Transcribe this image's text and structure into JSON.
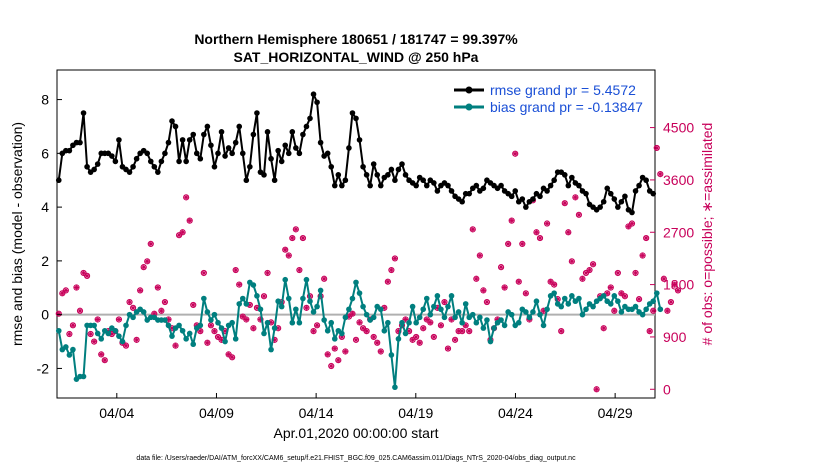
{
  "chart_data": {
    "type": "line",
    "title": "Northern Hemisphere 180651 / 181747 = 99.397%",
    "subtitle": "SAT_HORIZONTAL_WIND @ 250 hPa",
    "xlabel": "Apr.01,2020 00:00:00 start",
    "ylabel": "rmse and bias (model - observation)",
    "ylabel_right": "# of obs: o=possible; ∗=assimilated",
    "footer": "data file: /Users/raeder/DAI/ATM_forcXX/CAM6_setup/f.e21.FHIST_BGC.f09_025.CAM6assim.011/Diags_NTrS_2020-04/obs_diag_output.nc",
    "x_ticks": [
      {
        "day": 4,
        "label": "04/04"
      },
      {
        "day": 9,
        "label": "04/09"
      },
      {
        "day": 14,
        "label": "04/14"
      },
      {
        "day": 19,
        "label": "04/19"
      },
      {
        "day": 24,
        "label": "04/24"
      },
      {
        "day": 29,
        "label": "04/29"
      }
    ],
    "xlim": [
      1,
      31
    ],
    "ylim": [
      -3.1,
      9.1
    ],
    "y_ticks": [
      -2,
      0,
      2,
      4,
      6,
      8
    ],
    "ylim_right": [
      -150,
      5490
    ],
    "y_ticks_right": [
      0,
      900,
      1800,
      2700,
      3600,
      4500
    ],
    "zero_line": true,
    "legend_position": "top-right",
    "colors": {
      "rmse": "#000000",
      "bias": "#007f7f",
      "obs": "#c8005a",
      "zero": "#b0b0b0",
      "legend_text": "#1a4fd6"
    },
    "series": [
      {
        "name": "rmse grand pr = 5.4572",
        "color": "#000000",
        "values": [
          5.0,
          6.0,
          6.1,
          6.1,
          6.3,
          6.4,
          6.4,
          7.5,
          5.5,
          5.3,
          5.4,
          5.6,
          6.0,
          6.0,
          6.0,
          5.9,
          5.7,
          6.5,
          5.5,
          5.4,
          5.3,
          5.5,
          5.8,
          6.0,
          6.1,
          6.0,
          5.7,
          5.5,
          5.3,
          5.7,
          6.0,
          6.4,
          7.2,
          7.0,
          5.7,
          6.5,
          5.7,
          6.5,
          6.7,
          6.0,
          5.8,
          6.7,
          7.0,
          6.3,
          5.5,
          6.0,
          6.8,
          5.9,
          6.2,
          6.0,
          6.4,
          7.0,
          6.0,
          5.0,
          5.5,
          6.7,
          7.5,
          5.3,
          5.2,
          6.8,
          5.8,
          5.0,
          6.1,
          5.7,
          6.3,
          6.0,
          6.8,
          6.2,
          6.0,
          6.7,
          7.0,
          7.3,
          8.2,
          7.9,
          6.4,
          5.9,
          6.0,
          5.5,
          4.8,
          5.2,
          4.8,
          5.0,
          6.2,
          7.5,
          7.3,
          6.5,
          5.5,
          5.2,
          4.8,
          5.6,
          5.2,
          4.8,
          5.1,
          5.2,
          5.4,
          5.0,
          5.4,
          5.6,
          5.2,
          5.0,
          4.9,
          4.8,
          5.1,
          5.0,
          4.8,
          5.0,
          4.9,
          4.6,
          4.8,
          4.9,
          4.8,
          4.6,
          4.4,
          4.3,
          4.2,
          4.5,
          4.5,
          4.7,
          4.8,
          4.6,
          4.7,
          5.0,
          4.9,
          4.8,
          4.7,
          4.8,
          4.6,
          4.5,
          4.4,
          4.6,
          4.2,
          4.3,
          4.0,
          4.2,
          4.3,
          4.5,
          4.4,
          4.7,
          4.6,
          4.8,
          5.0,
          5.3,
          5.3,
          5.2,
          4.8,
          5.1,
          4.9,
          4.8,
          4.6,
          4.5,
          4.1,
          4.0,
          3.9,
          4.0,
          4.2,
          4.7,
          4.5,
          4.3,
          4.0,
          4.2,
          4.4,
          3.9,
          3.8,
          4.6,
          4.8,
          5.1,
          5.0,
          4.6,
          4.5
        ]
      },
      {
        "name": "bias grand pr = -0.13847",
        "color": "#007f7f",
        "values": [
          -0.6,
          -1.3,
          -1.2,
          -1.5,
          -1.3,
          -2.4,
          -2.3,
          -2.3,
          -0.4,
          -0.4,
          -0.4,
          -0.7,
          -0.9,
          -0.6,
          -0.7,
          -0.5,
          -0.6,
          -0.8,
          -1.0,
          -0.4,
          0.0,
          -0.1,
          0.1,
          0.2,
          0.1,
          -0.2,
          -0.1,
          -0.1,
          -0.2,
          -0.2,
          -0.2,
          -0.4,
          -0.8,
          -0.5,
          -0.4,
          -0.6,
          -0.9,
          -0.7,
          -1.1,
          -0.5,
          -0.4,
          0.6,
          0.1,
          -0.2,
          0.0,
          -0.3,
          -0.5,
          -1.0,
          -0.4,
          -0.3,
          -0.9,
          0.4,
          0.6,
          0.4,
          1.2,
          1.1,
          0.7,
          0.2,
          -0.7,
          -0.3,
          -1.3,
          -0.5,
          0.5,
          0.3,
          1.3,
          0.6,
          -0.3,
          0.2,
          -0.3,
          0.6,
          1.3,
          0.5,
          0.1,
          0.3,
          0.9,
          -0.2,
          -0.6,
          -0.3,
          -0.9,
          -0.6,
          -0.7,
          -0.1,
          0.2,
          0.6,
          1.2,
          0.8,
          0.3,
          0.0,
          -0.2,
          -0.1,
          0.3,
          0.2,
          -0.6,
          -0.3,
          -1.5,
          -2.7,
          -0.9,
          -0.3,
          -0.7,
          -0.3,
          0.3,
          -0.3,
          -0.1,
          0.2,
          0.6,
          0.0,
          0.3,
          0.7,
          0.2,
          -0.1,
          0.3,
          0.7,
          -0.1,
          0.1,
          -0.3,
          0.4,
          -0.1,
          0.0,
          -0.3,
          -0.1,
          -0.5,
          -0.2,
          -1.0,
          -0.5,
          -0.3,
          -0.2,
          -0.4,
          0.1,
          0.0,
          -0.4,
          -0.3,
          0.2,
          0.1,
          -0.1,
          0.1,
          0.5,
          0.0,
          -0.4,
          0.2,
          0.7,
          0.8,
          0.4,
          0.3,
          0.6,
          0.4,
          0.7,
          0.5,
          0.6,
          0.0,
          0.2,
          0.4,
          0.3,
          0.5,
          0.6,
          0.7,
          0.5,
          0.4,
          0.7,
          0.5,
          0.1,
          0.3,
          0.2,
          0.2,
          0.3,
          0.1,
          0.0,
          0.2,
          0.4,
          0.5,
          0.8,
          0.2
        ]
      }
    ],
    "obs_possible": [
      1300,
      1650,
      1700,
      950,
      1100,
      1750,
      1350,
      2000,
      1950,
      950,
      820,
      1200,
      600,
      500,
      1000,
      950,
      1000,
      1200,
      800,
      750,
      1500,
      1400,
      850,
      1700,
      2100,
      2200,
      2500,
      1300,
      1750,
      1350,
      1500,
      1200,
      1050,
      750,
      2650,
      2700,
      3300,
      2900,
      1450,
      1100,
      1000,
      2000,
      800,
      1100,
      1000,
      900,
      850,
      1000,
      600,
      550,
      2050,
      1800,
      1250,
      1200,
      1450,
      1050,
      1400,
      1200,
      1600,
      2000,
      1150,
      850,
      1050,
      1500,
      2400,
      2300,
      2600,
      2750,
      2050,
      2600,
      1400,
      1600,
      1000,
      1100,
      1600,
      1900,
      600,
      400,
      700,
      500,
      900,
      650,
      1250,
      1300,
      850,
      1150,
      1050,
      1000,
      1200,
      900,
      800,
      650,
      1400,
      1850,
      2050,
      2250,
      1000,
      1100,
      1200,
      1000,
      850,
      900,
      800,
      1050,
      1200,
      1150,
      900,
      1400,
      1100,
      1500,
      700,
      1200,
      850,
      1000,
      1000,
      1100,
      1000,
      2750,
      1900,
      2300,
      1700,
      1500,
      850,
      1050,
      1200,
      2100,
      1750,
      2500,
      2900,
      4050,
      1850,
      2500,
      1650,
      1200,
      3250,
      2700,
      2600,
      1350,
      2850,
      1850,
      1800,
      1550,
      1000,
      3200,
      2700,
      2200,
      3300,
      3000,
      1900,
      2000,
      2050,
      2150,
      0,
      1600,
      1050,
      1650,
      1750,
      1350,
      2000,
      1650,
      1600,
      2800,
      2850,
      2000,
      1550,
      2300,
      2600,
      1000,
      1350,
      4150,
      3700,
      1900,
      1350,
      1500,
      1800,
      1700
    ]
  }
}
